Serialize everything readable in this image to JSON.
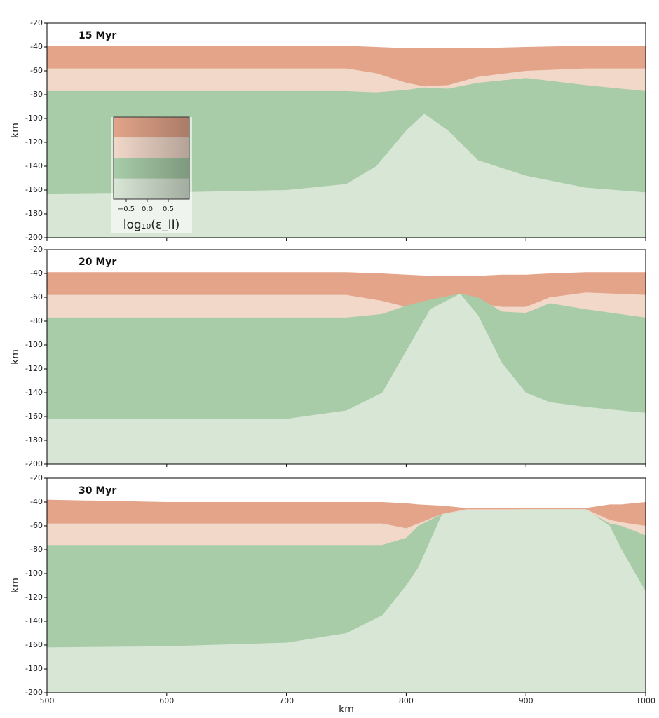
{
  "chart_data": [
    {
      "type": "layers",
      "title": "15 Myr",
      "ylabel": "km",
      "xlim": [
        500,
        1000
      ],
      "ylim": [
        -200,
        -20
      ],
      "xticks": [
        500,
        600,
        700,
        800,
        900,
        1000
      ],
      "show_xticklabels": false,
      "yticks": [
        -200,
        -180,
        -160,
        -140,
        -120,
        -100,
        -80,
        -60,
        -40,
        -20
      ],
      "x": [
        500,
        600,
        700,
        750,
        775,
        800,
        815,
        835,
        860,
        900,
        950,
        1000
      ],
      "series": [
        {
          "color": "#e3a48a",
          "values": [
            -39,
            -39,
            -39,
            -39,
            -40,
            -41,
            -41,
            -41,
            -41,
            -40,
            -39,
            -39
          ]
        },
        {
          "color": "#f1d8c9",
          "values": [
            -58,
            -58,
            -58,
            -58,
            -62,
            -70,
            -73,
            -72,
            -65,
            -60,
            -58,
            -58
          ]
        },
        {
          "color": "#a8cca8",
          "values": [
            -77,
            -77,
            -77,
            -77,
            -78,
            -76,
            -74,
            -75,
            -70,
            -66,
            -72,
            -77
          ]
        },
        {
          "color": "#d8e6d5",
          "values": [
            -163,
            -162,
            -160,
            -155,
            -140,
            -110,
            -96,
            -110,
            -135,
            -148,
            -158,
            -162
          ]
        }
      ],
      "colorbar": {
        "colors": [
          "#e3a48a",
          "#f1d8c9",
          "#a8cca8",
          "#d8e6d5"
        ],
        "lim": [
          -0.8,
          1.0
        ],
        "ticks": [
          {
            "value": -0.5,
            "label": "−0.5"
          },
          {
            "value": 0,
            "label": "0.0"
          },
          {
            "value": 0.5,
            "label": "0.5"
          }
        ],
        "label": "log₁₀(ε_II)"
      }
    },
    {
      "type": "layers",
      "title": "20 Myr",
      "ylabel": "km",
      "xlim": [
        500,
        1000
      ],
      "ylim": [
        -200,
        -20
      ],
      "xticks": [
        500,
        600,
        700,
        800,
        900,
        1000
      ],
      "show_xticklabels": false,
      "yticks": [
        -200,
        -180,
        -160,
        -140,
        -120,
        -100,
        -80,
        -60,
        -40,
        -20
      ],
      "x": [
        500,
        600,
        700,
        750,
        780,
        800,
        820,
        845,
        860,
        880,
        900,
        920,
        950,
        1000
      ],
      "series": [
        {
          "color": "#e3a48a",
          "values": [
            -39,
            -39,
            -39,
            -39,
            -40,
            -41,
            -42,
            -42,
            -42,
            -41,
            -41,
            -40,
            -39,
            -39
          ]
        },
        {
          "color": "#f1d8c9",
          "values": [
            -58,
            -58,
            -58,
            -58,
            -63,
            -68,
            -64,
            -60,
            -65,
            -68,
            -68,
            -60,
            -56,
            -58
          ]
        },
        {
          "color": "#a8cca8",
          "values": [
            -77,
            -77,
            -77,
            -77,
            -74,
            -67,
            -62,
            -57,
            -60,
            -72,
            -73,
            -65,
            -70,
            -77
          ]
        },
        {
          "color": "#d8e6d5",
          "values": [
            -162,
            -162,
            -162,
            -155,
            -140,
            -105,
            -70,
            -57,
            -75,
            -115,
            -140,
            -148,
            -152,
            -157
          ]
        }
      ]
    },
    {
      "type": "layers",
      "title": "30 Myr",
      "ylabel": "km",
      "xlabel": "km",
      "xlim": [
        500,
        1000
      ],
      "ylim": [
        -200,
        -20
      ],
      "xticks": [
        500,
        600,
        700,
        800,
        900,
        1000
      ],
      "show_xticklabels": true,
      "yticks": [
        -200,
        -180,
        -160,
        -140,
        -120,
        -100,
        -80,
        -60,
        -40,
        -20
      ],
      "x": [
        500,
        600,
        700,
        750,
        780,
        800,
        810,
        830,
        850,
        900,
        950,
        970,
        980,
        1000
      ],
      "series": [
        {
          "color": "#e3a48a",
          "values": [
            -38,
            -40,
            -40,
            -40,
            -40,
            -41,
            -42,
            -43,
            -45,
            -45,
            -45,
            -42,
            -42,
            -40
          ]
        },
        {
          "color": "#f1d8c9",
          "values": [
            -58,
            -58,
            -58,
            -58,
            -58,
            -62,
            -58,
            -50,
            -46,
            -46,
            -46,
            -55,
            -57,
            -60
          ]
        },
        {
          "color": "#a8cca8",
          "values": [
            -76,
            -76,
            -76,
            -76,
            -76,
            -70,
            -60,
            -50,
            -47,
            -47,
            -47,
            -58,
            -60,
            -68
          ]
        },
        {
          "color": "#d8e6d5",
          "values": [
            -162,
            -161,
            -158,
            -150,
            -135,
            -110,
            -95,
            -50,
            -47,
            -46,
            -46,
            -60,
            -80,
            -115
          ]
        }
      ]
    }
  ]
}
